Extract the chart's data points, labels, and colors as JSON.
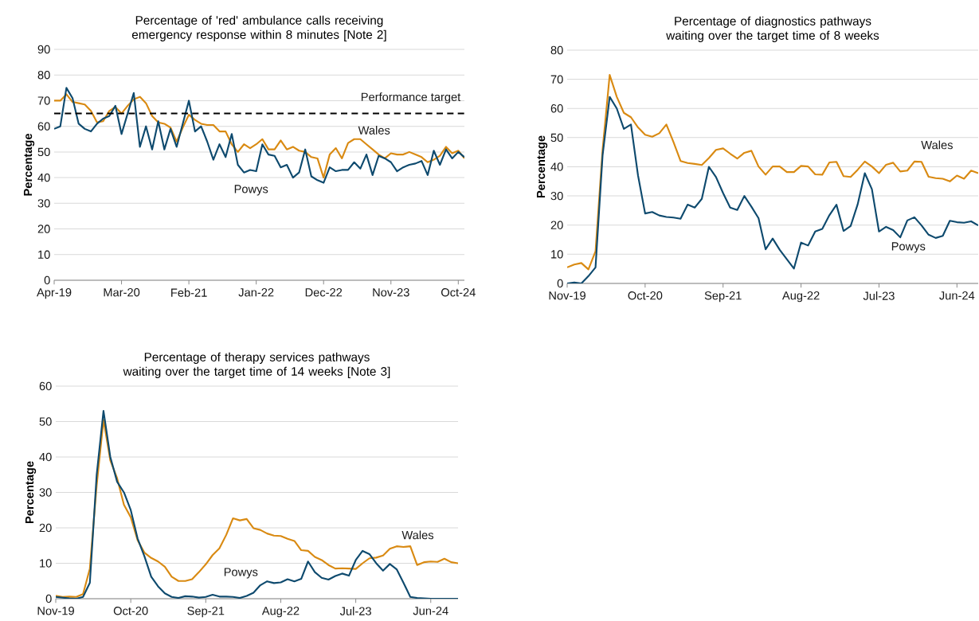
{
  "chart_data": [
    {
      "type": "line",
      "title": "Percentage of 'red' ambulance calls receiving emergency response within 8 minutes [Note 2]",
      "ylabel": "Percentage",
      "grid": "y",
      "x": [
        "2019-04",
        "2019-05",
        "2019-06",
        "2019-07",
        "2019-08",
        "2019-09",
        "2019-10",
        "2019-11",
        "2019-12",
        "2020-01",
        "2020-02",
        "2020-03",
        "2020-04",
        "2020-05",
        "2020-06",
        "2020-07",
        "2020-08",
        "2020-09",
        "2020-10",
        "2020-11",
        "2020-12",
        "2021-01",
        "2021-02",
        "2021-03",
        "2021-04",
        "2021-05",
        "2021-06",
        "2021-07",
        "2021-08",
        "2021-09",
        "2021-10",
        "2021-11",
        "2021-12",
        "2022-01",
        "2022-02",
        "2022-03",
        "2022-04",
        "2022-05",
        "2022-06",
        "2022-07",
        "2022-08",
        "2022-09",
        "2022-10",
        "2022-11",
        "2022-12",
        "2023-01",
        "2023-02",
        "2023-03",
        "2023-04",
        "2023-05",
        "2023-06",
        "2023-07",
        "2023-08",
        "2023-09",
        "2023-10",
        "2023-11",
        "2023-12",
        "2024-01",
        "2024-02",
        "2024-03",
        "2024-04",
        "2024-05",
        "2024-06",
        "2024-07",
        "2024-08",
        "2024-09",
        "2024-10",
        "2024-11"
      ],
      "xlim": [
        "2019-04",
        "2024-11"
      ],
      "xticks": [
        {
          "value": "2019-04",
          "label": "Apr-19"
        },
        {
          "value": "2020-03",
          "label": "Mar-20"
        },
        {
          "value": "2021-02",
          "label": "Feb-21"
        },
        {
          "value": "2022-01",
          "label": "Jan-22"
        },
        {
          "value": "2022-12",
          "label": "Dec-22"
        },
        {
          "value": "2023-11",
          "label": "Nov-23"
        },
        {
          "value": "2024-10",
          "label": "Oct-24"
        }
      ],
      "ylim": [
        0,
        90
      ],
      "yticks": [
        0,
        10,
        20,
        30,
        40,
        50,
        60,
        70,
        80,
        90
      ],
      "ref_lines": [
        {
          "axis": "y",
          "value": 65,
          "label": "Performance target",
          "color": "#000000",
          "line_style": "dashed"
        }
      ],
      "series": [
        {
          "name": "Wales",
          "color": "#d98a12",
          "values": [
            70,
            70,
            72.5,
            69.5,
            69,
            68.5,
            66,
            61.5,
            62,
            66,
            67.5,
            65,
            68,
            70.5,
            71.5,
            69,
            64,
            61.5,
            61,
            59.5,
            54,
            59.5,
            64.5,
            62.5,
            61,
            60.5,
            60.5,
            58,
            58,
            53,
            50,
            53,
            51.5,
            53,
            55,
            51,
            51,
            54.5,
            51,
            52,
            50.5,
            50,
            48,
            47.5,
            40,
            49,
            51.5,
            47.5,
            53.5,
            55,
            55,
            53,
            51,
            49,
            47.5,
            49.5,
            49,
            49,
            50,
            49,
            48,
            46,
            47,
            48.5,
            52,
            49.5,
            50.5,
            47.5
          ]
        },
        {
          "name": "Powys",
          "color": "#0e4a6e",
          "values": [
            59,
            60,
            75,
            71,
            61,
            59,
            58,
            61,
            63,
            64,
            68,
            57,
            65,
            73,
            52,
            60,
            51,
            62,
            51,
            59,
            52,
            61,
            70,
            58,
            60,
            54,
            47,
            53,
            48,
            57,
            45,
            42,
            43,
            42.5,
            53,
            49,
            48.5,
            44,
            45,
            40,
            42,
            51,
            40.5,
            39,
            38,
            44,
            42.5,
            43,
            43,
            46,
            43.5,
            49,
            41,
            48.5,
            47.5,
            46,
            42.5,
            44,
            45,
            45.5,
            46.5,
            41,
            50.5,
            45,
            51,
            47.5,
            50,
            48
          ]
        }
      ]
    },
    {
      "type": "line",
      "title": "Percentage of diagnostics pathways waiting over the target time of 8 weeks",
      "ylabel": "Percentage",
      "grid": "y",
      "x": [
        "2019-11",
        "2019-12",
        "2020-01",
        "2020-02",
        "2020-03",
        "2020-04",
        "2020-05",
        "2020-06",
        "2020-07",
        "2020-08",
        "2020-09",
        "2020-10",
        "2020-11",
        "2020-12",
        "2021-01",
        "2021-02",
        "2021-03",
        "2021-04",
        "2021-05",
        "2021-06",
        "2021-07",
        "2021-08",
        "2021-09",
        "2021-10",
        "2021-11",
        "2021-12",
        "2022-01",
        "2022-02",
        "2022-03",
        "2022-04",
        "2022-05",
        "2022-06",
        "2022-07",
        "2022-08",
        "2022-09",
        "2022-10",
        "2022-11",
        "2022-12",
        "2023-01",
        "2023-02",
        "2023-03",
        "2023-04",
        "2023-05",
        "2023-06",
        "2023-07",
        "2023-08",
        "2023-09",
        "2023-10",
        "2023-11",
        "2023-12",
        "2024-01",
        "2024-02",
        "2024-03",
        "2024-04",
        "2024-05",
        "2024-06",
        "2024-07",
        "2024-08",
        "2024-09"
      ],
      "xlim": [
        "2019-11",
        "2024-09"
      ],
      "xticks": [
        {
          "value": "2019-11",
          "label": "Nov-19"
        },
        {
          "value": "2020-10",
          "label": "Oct-20"
        },
        {
          "value": "2021-09",
          "label": "Sep-21"
        },
        {
          "value": "2022-08",
          "label": "Aug-22"
        },
        {
          "value": "2023-07",
          "label": "Jul-23"
        },
        {
          "value": "2024-06",
          "label": "Jun-24"
        }
      ],
      "ylim": [
        0,
        80
      ],
      "yticks": [
        0,
        10,
        20,
        30,
        40,
        50,
        60,
        70,
        80
      ],
      "series": [
        {
          "name": "Wales",
          "color": "#d98a12",
          "values": [
            5.5,
            6.5,
            7,
            4.8,
            11,
            46,
            71.5,
            64,
            58.5,
            57,
            53.5,
            51,
            50.3,
            51.5,
            54.5,
            48.5,
            42,
            41.3,
            41,
            40.6,
            43,
            45.8,
            46.3,
            44.5,
            42.8,
            44.8,
            45.5,
            40.1,
            37.3,
            40.1,
            40.1,
            38.2,
            38.2,
            40.3,
            40.1,
            37.4,
            37.3,
            41.5,
            41.7,
            36.8,
            36.5,
            39,
            41.8,
            40.1,
            37.8,
            40.7,
            41.4,
            38.4,
            38.7,
            41.8,
            41.7,
            36.6,
            36.1,
            35.9,
            35,
            37,
            35.9,
            38.7,
            37.8
          ]
        },
        {
          "name": "Powys",
          "color": "#0e4a6e",
          "values": [
            0,
            0.3,
            0,
            2.5,
            5.5,
            44,
            64,
            60,
            53,
            54.5,
            37,
            24,
            24.5,
            23.3,
            22.8,
            22.6,
            22.2,
            27,
            26,
            29,
            40,
            36.5,
            31,
            26,
            25.2,
            30,
            26.3,
            22.4,
            11.7,
            15.4,
            11.5,
            8.3,
            5.1,
            14,
            13,
            17.8,
            18.7,
            23.4,
            27,
            18,
            19.7,
            27.2,
            37.8,
            32.3,
            17.8,
            19.4,
            18.3,
            15.8,
            21.6,
            22.7,
            19.9,
            16.7,
            15.6,
            16.3,
            21.5,
            21,
            20.8,
            21.3,
            19.9
          ]
        }
      ]
    },
    {
      "type": "line",
      "title": "Percentage of therapy services pathways waiting over the target time of 14 weeks [Note 3]",
      "ylabel": "Percentage",
      "grid": "y",
      "x": [
        "2019-11",
        "2019-12",
        "2020-01",
        "2020-02",
        "2020-03",
        "2020-04",
        "2020-05",
        "2020-06",
        "2020-07",
        "2020-08",
        "2020-09",
        "2020-10",
        "2020-11",
        "2020-12",
        "2021-01",
        "2021-02",
        "2021-03",
        "2021-04",
        "2021-05",
        "2021-06",
        "2021-07",
        "2021-08",
        "2021-09",
        "2021-10",
        "2021-11",
        "2021-12",
        "2022-01",
        "2022-02",
        "2022-03",
        "2022-04",
        "2022-05",
        "2022-06",
        "2022-07",
        "2022-08",
        "2022-09",
        "2022-10",
        "2022-11",
        "2022-12",
        "2023-01",
        "2023-02",
        "2023-03",
        "2023-04",
        "2023-05",
        "2023-06",
        "2023-07",
        "2023-08",
        "2023-09",
        "2023-10",
        "2023-11",
        "2023-12",
        "2024-01",
        "2024-02",
        "2024-03",
        "2024-04",
        "2024-05",
        "2024-06",
        "2024-07",
        "2024-08",
        "2024-09",
        "2024-10"
      ],
      "xlim": [
        "2019-11",
        "2024-10"
      ],
      "xticks": [
        {
          "value": "2019-11",
          "label": "Nov-19"
        },
        {
          "value": "2020-10",
          "label": "Oct-20"
        },
        {
          "value": "2021-09",
          "label": "Sep-21"
        },
        {
          "value": "2022-08",
          "label": "Aug-22"
        },
        {
          "value": "2023-07",
          "label": "Jul-23"
        },
        {
          "value": "2024-06",
          "label": "Jun-24"
        }
      ],
      "ylim": [
        0,
        60
      ],
      "yticks": [
        0,
        10,
        20,
        30,
        40,
        50,
        60
      ],
      "series": [
        {
          "name": "Wales",
          "color": "#d98a12",
          "values": [
            0.8,
            0.5,
            0.6,
            0.5,
            1.3,
            8.5,
            32,
            50.5,
            39,
            34,
            26.5,
            23,
            16.5,
            13,
            11.5,
            10.5,
            9,
            6.2,
            5,
            5,
            5.5,
            7.5,
            9.7,
            12.3,
            14.2,
            18,
            22.7,
            22.1,
            22.5,
            19.9,
            19.4,
            18.4,
            17.8,
            17.7,
            16.9,
            16.3,
            13.7,
            13.5,
            11.8,
            10.9,
            9.5,
            8.5,
            8.6,
            8.5,
            8.4,
            10,
            11.4,
            11.6,
            12.2,
            14.1,
            14.8,
            14.6,
            14.8,
            9.5,
            10.3,
            10.5,
            10.4,
            11.3,
            10.3,
            10
          ]
        },
        {
          "name": "Powys",
          "color": "#0e4a6e",
          "values": [
            0.5,
            0.3,
            0.1,
            0,
            0.5,
            4.5,
            35,
            53,
            40,
            33,
            30,
            25,
            17,
            12,
            6.2,
            3.5,
            1.5,
            0.5,
            0.2,
            0.7,
            0.6,
            0.3,
            0.5,
            1.1,
            0.6,
            0.6,
            0.5,
            0.2,
            0.8,
            1.7,
            3.8,
            4.9,
            4.4,
            4.6,
            5.5,
            4.9,
            5.6,
            10.5,
            7.5,
            5.9,
            5.4,
            6.4,
            7.1,
            6.5,
            10.9,
            13.5,
            12.6,
            10,
            7.9,
            9.8,
            8.3,
            4.5,
            0.5,
            0.2,
            0.1,
            0,
            0,
            0,
            0,
            0
          ]
        }
      ]
    }
  ]
}
